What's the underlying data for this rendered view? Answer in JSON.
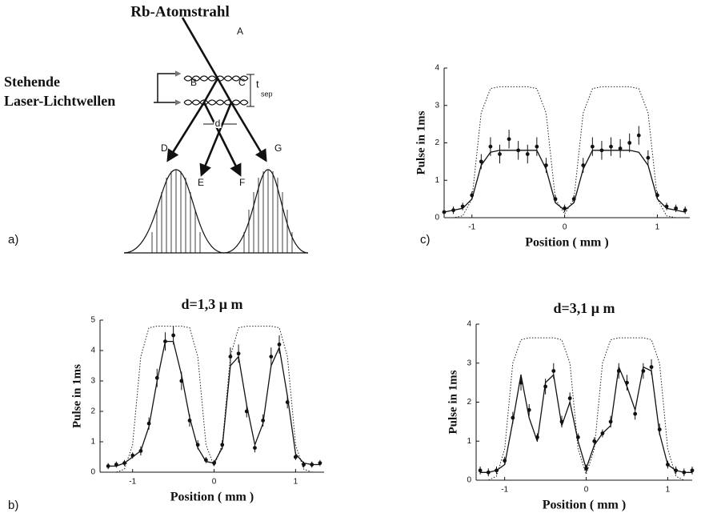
{
  "diagram": {
    "beam": "Rb-Atomstrahl",
    "laser_line1": "Stehende",
    "laser_line2": "Laser-Lichtwellen",
    "labels": [
      "A",
      "B",
      "C",
      "D",
      "E",
      "F",
      "G"
    ],
    "t": "t",
    "t_sub": "sep",
    "d": "d",
    "panel": "a)"
  },
  "chart_data": [
    {
      "type": "scatter",
      "label": "c)",
      "xlabel": "Position ( mm )",
      "ylabel": "Pulse in 1ms",
      "xlim": [
        -1.3,
        1.35
      ],
      "xticks": [
        -1,
        0,
        1
      ],
      "ylim": [
        0,
        4
      ],
      "yticks": [
        0,
        1,
        2,
        3,
        4
      ],
      "x": [
        -1.3,
        -1.2,
        -1.1,
        -1.0,
        -0.9,
        -0.8,
        -0.7,
        -0.6,
        -0.5,
        -0.4,
        -0.3,
        -0.2,
        -0.1,
        0,
        0.1,
        0.2,
        0.3,
        0.4,
        0.5,
        0.6,
        0.7,
        0.8,
        0.9,
        1.0,
        1.1,
        1.2,
        1.3
      ],
      "series": [
        {
          "style": "dotted",
          "color": "#222222",
          "values": [
            0,
            0,
            0.05,
            0.5,
            2.8,
            3.45,
            3.5,
            3.5,
            3.5,
            3.5,
            3.45,
            2.8,
            0.5,
            0.1,
            0.5,
            2.8,
            3.45,
            3.5,
            3.5,
            3.5,
            3.5,
            3.45,
            2.8,
            0.5,
            0.05,
            0,
            0
          ]
        },
        {
          "style": "line",
          "color": "#111111",
          "values": [
            0.15,
            0.2,
            0.25,
            0.5,
            1.4,
            1.75,
            1.8,
            1.8,
            1.8,
            1.8,
            1.8,
            1.3,
            0.4,
            0.2,
            0.4,
            1.3,
            1.8,
            1.8,
            1.8,
            1.8,
            1.8,
            1.75,
            1.4,
            0.5,
            0.25,
            0.2,
            0.15
          ]
        },
        {
          "style": "points",
          "color": "#111111",
          "values": [
            0.15,
            0.2,
            0.3,
            0.6,
            1.5,
            1.9,
            1.7,
            2.1,
            1.8,
            1.7,
            1.9,
            1.4,
            0.5,
            0.25,
            0.5,
            1.4,
            1.9,
            1.8,
            1.9,
            1.85,
            2.0,
            2.2,
            1.6,
            0.6,
            0.3,
            0.25,
            0.2
          ],
          "errors": [
            0.1,
            0.1,
            0.1,
            0.1,
            0.2,
            0.25,
            0.25,
            0.25,
            0.25,
            0.25,
            0.25,
            0.2,
            0.1,
            0.1,
            0.1,
            0.2,
            0.25,
            0.25,
            0.25,
            0.25,
            0.25,
            0.25,
            0.2,
            0.1,
            0.1,
            0.1,
            0.1
          ]
        }
      ]
    },
    {
      "type": "scatter",
      "label": "b)",
      "title": "d=1,3 μ m",
      "xlabel": "Position ( mm )",
      "ylabel": "Pulse in 1ms",
      "xlim": [
        -1.4,
        1.35
      ],
      "xticks": [
        -1,
        0,
        1
      ],
      "ylim": [
        0,
        5
      ],
      "yticks": [
        0,
        1,
        2,
        3,
        4,
        5
      ],
      "x": [
        -1.3,
        -1.2,
        -1.1,
        -1.0,
        -0.9,
        -0.8,
        -0.7,
        -0.6,
        -0.5,
        -0.4,
        -0.3,
        -0.2,
        -0.1,
        0,
        0.1,
        0.2,
        0.3,
        0.4,
        0.5,
        0.6,
        0.7,
        0.8,
        0.9,
        1.0,
        1.1,
        1.2,
        1.3
      ],
      "series": [
        {
          "style": "dotted",
          "color": "#222222",
          "values": [
            0,
            0,
            0.1,
            0.9,
            3.8,
            4.75,
            4.8,
            4.8,
            4.8,
            4.8,
            4.75,
            3.8,
            0.9,
            0.2,
            0.9,
            3.8,
            4.75,
            4.8,
            4.8,
            4.8,
            4.8,
            4.75,
            3.8,
            0.9,
            0.1,
            0,
            0
          ]
        },
        {
          "style": "line",
          "color": "#111111",
          "values": [
            0.2,
            0.2,
            0.3,
            0.5,
            0.7,
            1.5,
            3.0,
            4.3,
            4.3,
            3.2,
            1.8,
            0.8,
            0.35,
            0.3,
            0.8,
            3.5,
            3.8,
            2.2,
            0.9,
            1.6,
            3.5,
            4.1,
            2.5,
            0.6,
            0.3,
            0.25,
            0.25
          ]
        },
        {
          "style": "points",
          "color": "#111111",
          "values": [
            0.2,
            0.25,
            0.3,
            0.55,
            0.7,
            1.6,
            3.1,
            4.3,
            4.5,
            3.0,
            1.7,
            0.9,
            0.4,
            0.3,
            0.9,
            3.8,
            3.9,
            2.0,
            0.8,
            1.7,
            3.8,
            4.2,
            2.3,
            0.5,
            0.25,
            0.25,
            0.3
          ],
          "errors": [
            0.1,
            0.1,
            0.1,
            0.1,
            0.15,
            0.2,
            0.3,
            0.3,
            0.3,
            0.3,
            0.2,
            0.15,
            0.1,
            0.1,
            0.15,
            0.3,
            0.3,
            0.2,
            0.15,
            0.2,
            0.3,
            0.3,
            0.2,
            0.1,
            0.1,
            0.1,
            0.1
          ]
        }
      ]
    },
    {
      "type": "scatter",
      "title": "d=3,1 μ m",
      "xlabel": "Position ( mm )",
      "ylabel": "Pulse in 1ms",
      "xlim": [
        -1.35,
        1.3
      ],
      "xticks": [
        -1,
        0,
        1
      ],
      "ylim": [
        0,
        4
      ],
      "yticks": [
        0,
        1,
        2,
        3,
        4
      ],
      "x": [
        -1.3,
        -1.2,
        -1.1,
        -1.0,
        -0.9,
        -0.8,
        -0.7,
        -0.6,
        -0.5,
        -0.4,
        -0.3,
        -0.2,
        -0.1,
        0,
        0.1,
        0.2,
        0.3,
        0.4,
        0.5,
        0.6,
        0.7,
        0.8,
        0.9,
        1.0,
        1.1,
        1.2,
        1.3
      ],
      "series": [
        {
          "style": "dotted",
          "color": "#222222",
          "values": [
            0,
            0,
            0.1,
            0.8,
            3.0,
            3.6,
            3.65,
            3.65,
            3.65,
            3.65,
            3.6,
            3.0,
            0.8,
            0.15,
            0.8,
            3.0,
            3.6,
            3.65,
            3.65,
            3.65,
            3.65,
            3.6,
            3.0,
            0.8,
            0.1,
            0,
            0
          ]
        },
        {
          "style": "line",
          "color": "#111111",
          "values": [
            0.2,
            0.2,
            0.25,
            0.4,
            1.5,
            2.7,
            1.6,
            1.0,
            2.5,
            2.7,
            1.4,
            2.0,
            1.0,
            0.3,
            0.9,
            1.2,
            1.4,
            2.9,
            2.4,
            1.8,
            2.9,
            2.8,
            1.2,
            0.4,
            0.25,
            0.2,
            0.2
          ]
        },
        {
          "style": "points",
          "color": "#111111",
          "values": [
            0.25,
            0.2,
            0.25,
            0.5,
            1.6,
            2.5,
            1.8,
            1.1,
            2.4,
            2.8,
            1.5,
            2.1,
            1.1,
            0.3,
            1.0,
            1.2,
            1.5,
            2.8,
            2.5,
            1.7,
            2.8,
            2.9,
            1.3,
            0.4,
            0.25,
            0.2,
            0.25
          ],
          "errors": [
            0.1,
            0.1,
            0.1,
            0.1,
            0.15,
            0.2,
            0.15,
            0.1,
            0.2,
            0.2,
            0.15,
            0.15,
            0.1,
            0.1,
            0.1,
            0.1,
            0.15,
            0.2,
            0.2,
            0.15,
            0.2,
            0.2,
            0.15,
            0.1,
            0.1,
            0.1,
            0.1
          ]
        }
      ]
    }
  ]
}
